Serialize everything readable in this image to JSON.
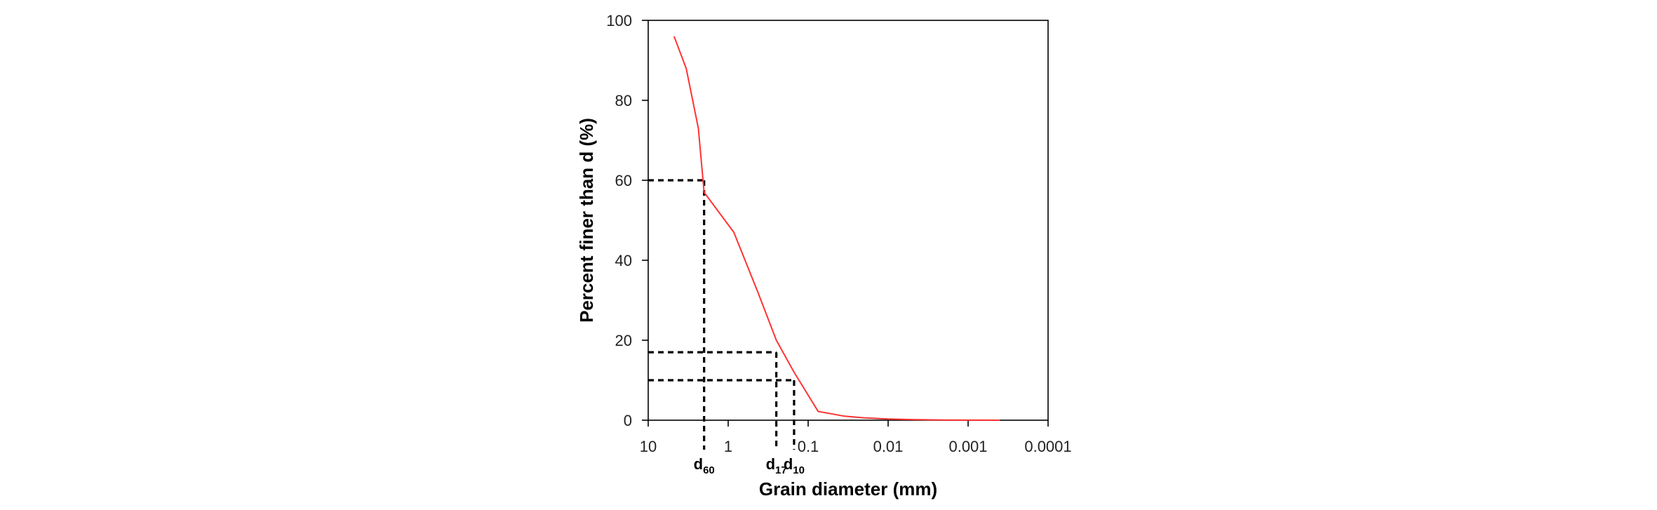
{
  "chart_data": {
    "type": "line",
    "xlabel": "Grain diameter (mm)",
    "ylabel": "Percent  finer  than  d (%)",
    "x_scale": "log",
    "x_reversed": true,
    "xlim": [
      10,
      0.0001
    ],
    "ylim": [
      0,
      100
    ],
    "x_ticks": [
      {
        "value": 10,
        "label": "10"
      },
      {
        "value": 1,
        "label": "1"
      },
      {
        "value": 0.1,
        "label": "0.1"
      },
      {
        "value": 0.01,
        "label": "0.01"
      },
      {
        "value": 0.001,
        "label": "0.001"
      },
      {
        "value": 0.0001,
        "label": "0.0001"
      }
    ],
    "y_ticks": [
      {
        "value": 0,
        "label": "0"
      },
      {
        "value": 20,
        "label": "20"
      },
      {
        "value": 40,
        "label": "40"
      },
      {
        "value": 60,
        "label": "60"
      },
      {
        "value": 80,
        "label": "80"
      },
      {
        "value": 100,
        "label": "100"
      }
    ],
    "grid": false,
    "series": [
      {
        "color": "#ff3333",
        "x": [
          4.75,
          3.35,
          2.36,
          2.0,
          0.85,
          0.425,
          0.25,
          0.15,
          0.075,
          0.035,
          0.02,
          0.01,
          0.005,
          0.002,
          0.001,
          0.0004
        ],
        "y": [
          96,
          88,
          73,
          57,
          47,
          32,
          20,
          12,
          2.2,
          1.0,
          0.6,
          0.3,
          0.15,
          0.05,
          0.02,
          0.01
        ]
      }
    ],
    "reference_lines": [
      {
        "label_main": "d",
        "label_sub": "60",
        "percent": 60,
        "diameter": 2.0
      },
      {
        "label_main": "d",
        "label_sub": "17",
        "percent": 17,
        "diameter": 0.25
      },
      {
        "label_main": "d",
        "label_sub": "10",
        "percent": 10,
        "diameter": 0.15
      }
    ]
  }
}
